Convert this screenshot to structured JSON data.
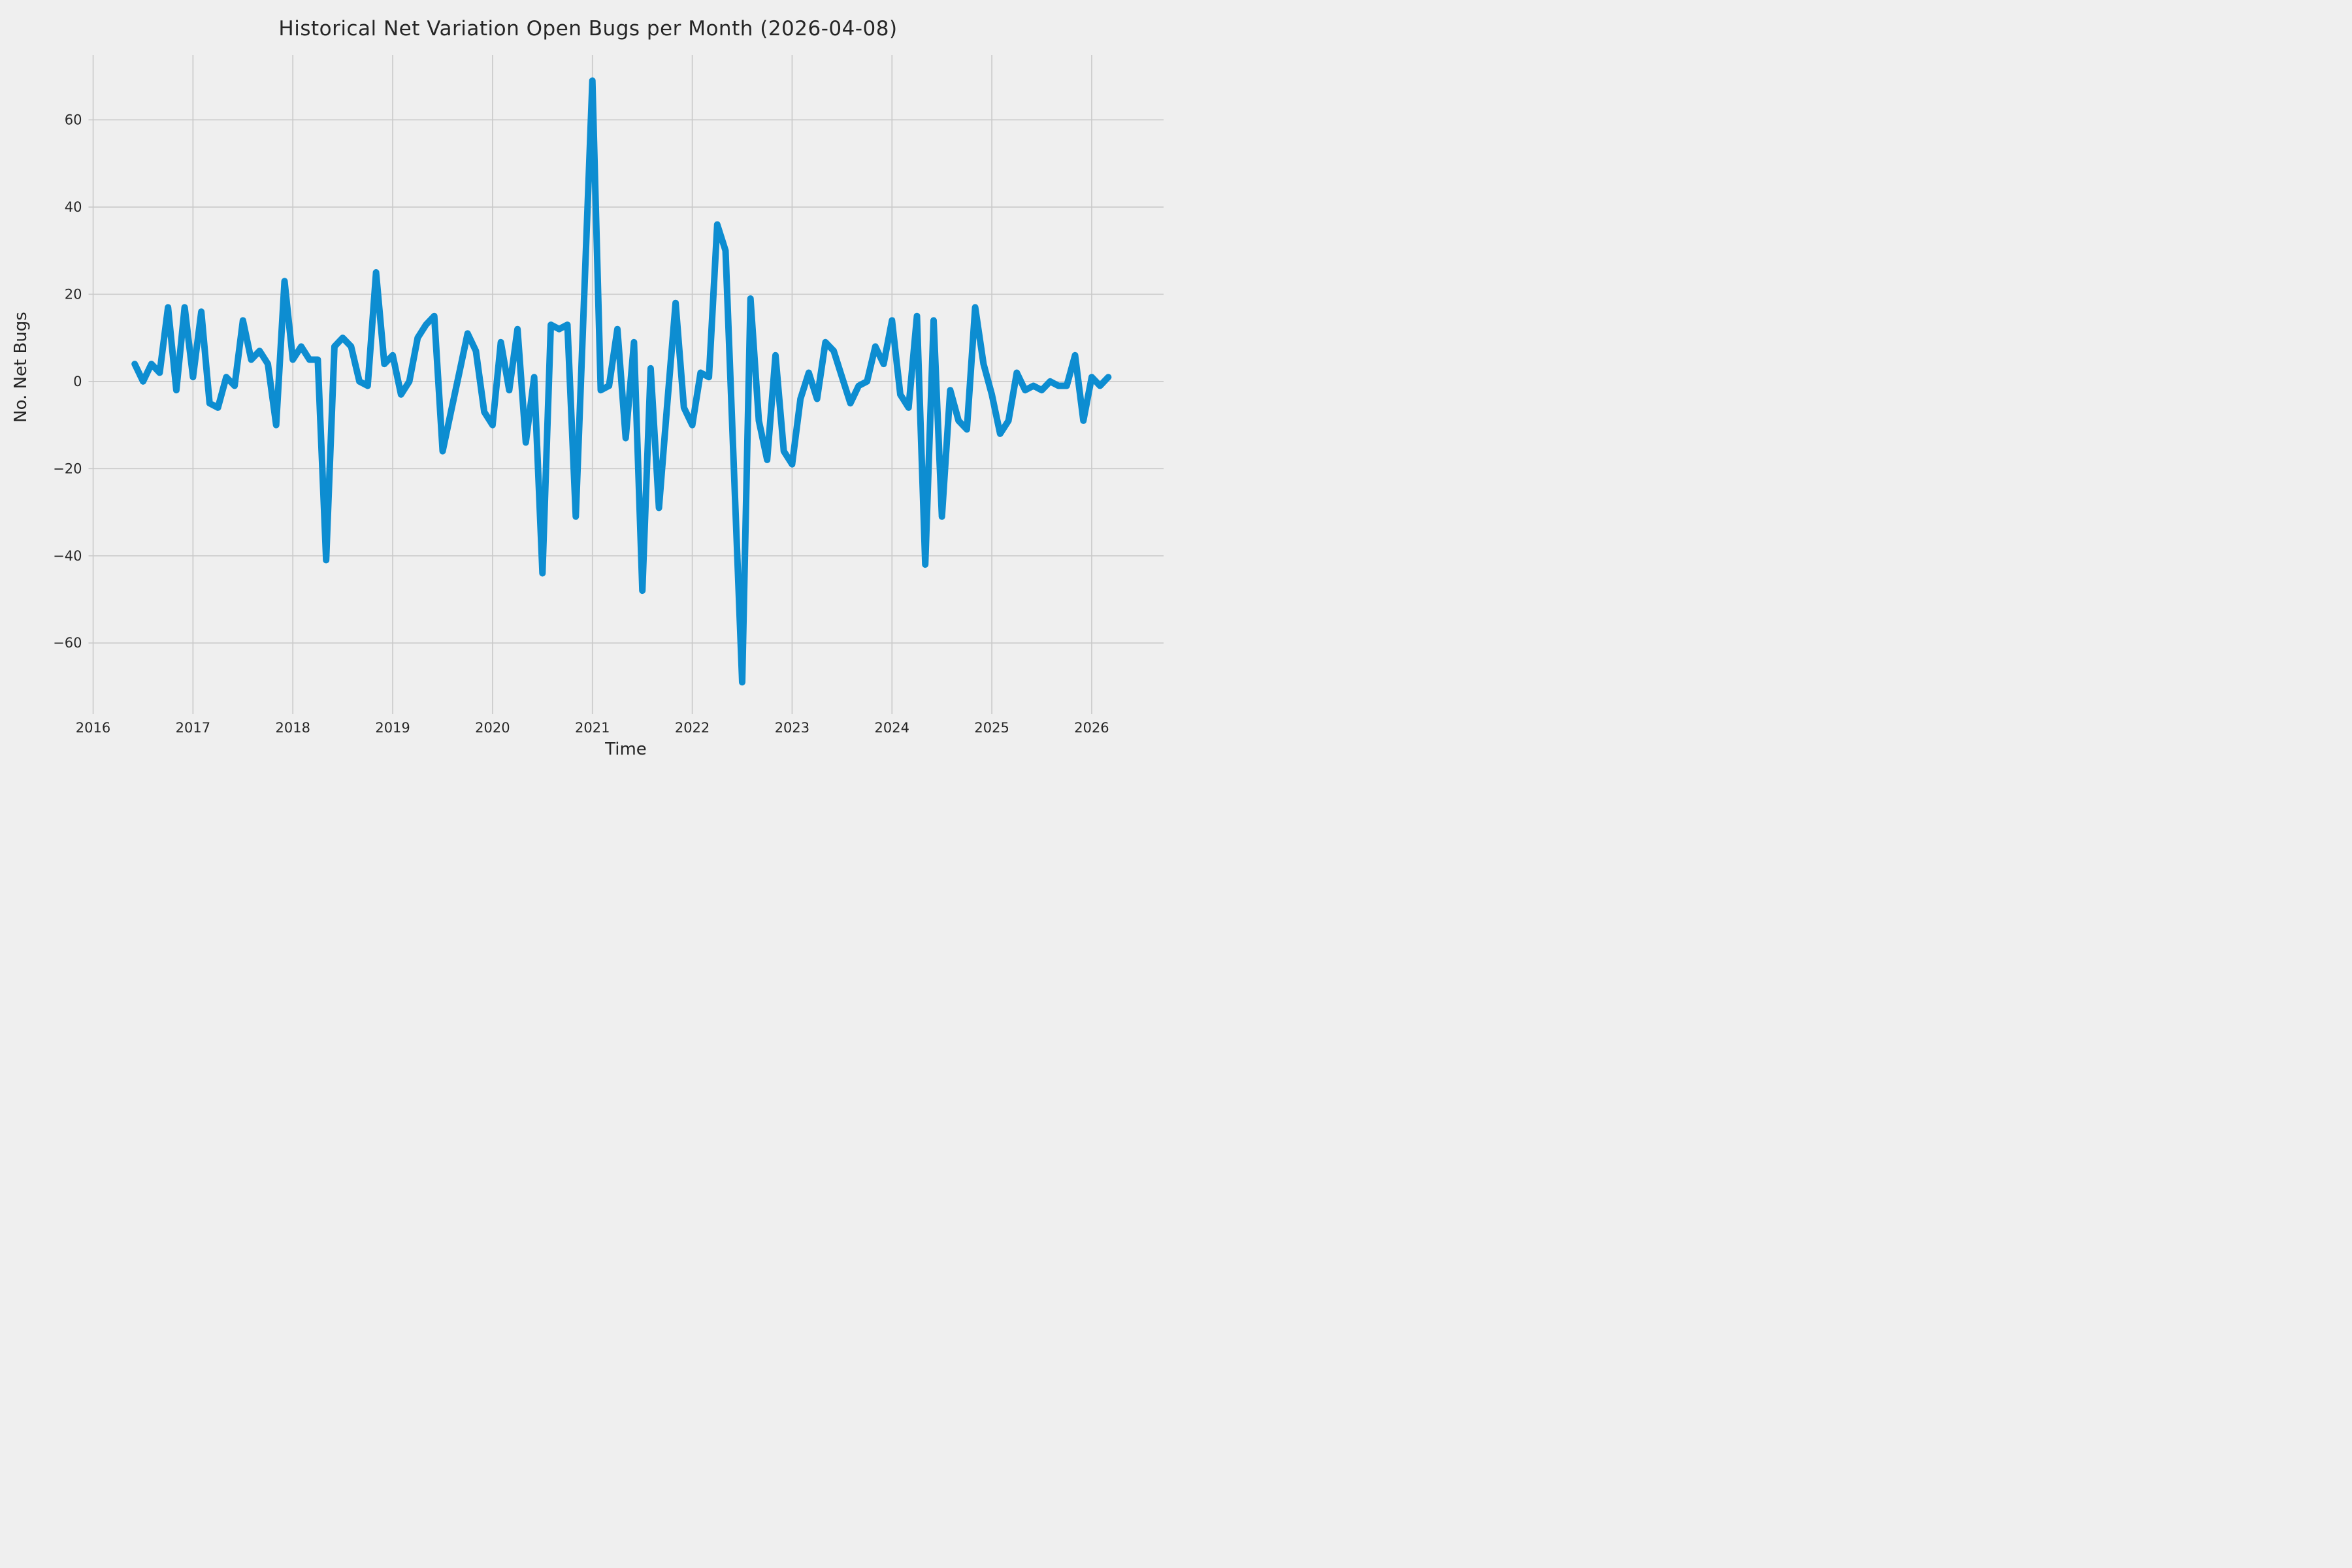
{
  "figure": {
    "title": "Historical Net Variation Open Bugs per Month (2026-04-08)",
    "xlabel": "Time",
    "ylabel": "No. Net Bugs"
  },
  "colors": {
    "background": "#efefef",
    "grid": "#c9c9c9",
    "text": "#262626",
    "line": "#0d8dd1"
  },
  "chart_data": {
    "type": "line",
    "title": "Historical Net Variation Open Bugs per Month (2026-04-08)",
    "xlabel": "Time",
    "ylabel": "No. Net Bugs",
    "grid": true,
    "legend_position": "none",
    "x_tick_labels": [
      "2016",
      "2017",
      "2018",
      "2019",
      "2020",
      "2021",
      "2022",
      "2023",
      "2024",
      "2025",
      "2026"
    ],
    "x_tick_years": [
      2016,
      2017,
      2018,
      2019,
      2020,
      2021,
      2022,
      2023,
      2024,
      2025,
      2026
    ],
    "y_ticks": [
      -60,
      -40,
      -20,
      0,
      20,
      40,
      60
    ],
    "ylim": [
      -76.3,
      74.9
    ],
    "xlim_years": [
      2015.954,
      2026.72
    ],
    "series": [
      {
        "name": "net-open-bugs-variation",
        "color": "#0d8dd1",
        "x": [
          "2016-06",
          "2016-07",
          "2016-08",
          "2016-09",
          "2016-10",
          "2016-11",
          "2016-12",
          "2017-01",
          "2017-02",
          "2017-03",
          "2017-04",
          "2017-05",
          "2017-06",
          "2017-07",
          "2017-08",
          "2017-09",
          "2017-10",
          "2017-11",
          "2017-12",
          "2018-01",
          "2018-02",
          "2018-03",
          "2018-04",
          "2018-05",
          "2018-06",
          "2018-07",
          "2018-08",
          "2018-09",
          "2018-10",
          "2018-11",
          "2018-12",
          "2019-01",
          "2019-02",
          "2019-03",
          "2019-04",
          "2019-05",
          "2019-06",
          "2019-07",
          "2019-08",
          "2019-09",
          "2019-10",
          "2019-11",
          "2019-12",
          "2020-01",
          "2020-02",
          "2020-03",
          "2020-04",
          "2020-05",
          "2020-06",
          "2020-07",
          "2020-08",
          "2020-09",
          "2020-10",
          "2020-11",
          "2020-12",
          "2021-01",
          "2021-02",
          "2021-03",
          "2021-04",
          "2021-05",
          "2021-06",
          "2021-07",
          "2021-08",
          "2021-09",
          "2021-10",
          "2021-11",
          "2021-12",
          "2022-01",
          "2022-02",
          "2022-03",
          "2022-04",
          "2022-05",
          "2022-06",
          "2022-07",
          "2022-08",
          "2022-09",
          "2022-10",
          "2022-11",
          "2022-12",
          "2023-01",
          "2023-02",
          "2023-03",
          "2023-04",
          "2023-05",
          "2023-06",
          "2023-07",
          "2023-08",
          "2023-09",
          "2023-10",
          "2023-11",
          "2023-12",
          "2024-01",
          "2024-02",
          "2024-03",
          "2024-04",
          "2024-05",
          "2024-06",
          "2024-07",
          "2024-08",
          "2024-09",
          "2024-10",
          "2024-11",
          "2024-12",
          "2025-01",
          "2025-02",
          "2025-03",
          "2025-04",
          "2025-05",
          "2025-06",
          "2025-07",
          "2025-08",
          "2025-09",
          "2025-10",
          "2025-11",
          "2025-12",
          "2026-01",
          "2026-02",
          "2026-03"
        ],
        "values": [
          4,
          0,
          4,
          2,
          17,
          -2,
          17,
          1,
          16,
          -5,
          -6,
          1,
          -1,
          14,
          5,
          7,
          4,
          -10,
          23,
          5,
          8,
          5,
          5,
          -41,
          8,
          10,
          8,
          0,
          -1,
          25,
          4,
          6,
          -3,
          0,
          10,
          13,
          15,
          -16,
          -7,
          2,
          11,
          7,
          -7,
          -10,
          9,
          -2,
          12,
          -14,
          1,
          -44,
          13,
          12,
          13,
          -31,
          19,
          69,
          -2,
          -1,
          12,
          -13,
          9,
          -48,
          3,
          -29,
          -5,
          18,
          -6,
          -10,
          2,
          1,
          36,
          30,
          -20,
          -69,
          19,
          -9,
          -18,
          6,
          -16,
          -19,
          -4,
          2,
          -4,
          9,
          7,
          1,
          -5,
          -1,
          0,
          8,
          4,
          14,
          -3,
          -6,
          15,
          -42,
          14,
          -31,
          -2,
          -9,
          -11,
          17,
          4,
          -3,
          -12,
          -9,
          2,
          -2,
          -1,
          -2,
          0,
          -1,
          -1,
          6,
          -9,
          1,
          -1,
          1
        ]
      }
    ]
  }
}
